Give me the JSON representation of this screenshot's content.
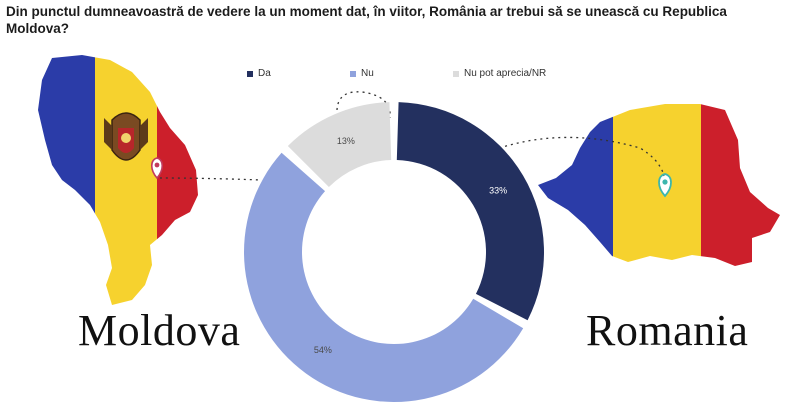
{
  "question": "Din punctul dumneavoastră de vedere la un moment dat, în viitor,  România ar trebui să se unească cu Republica Moldova?",
  "labels": {
    "left_country": "Moldova",
    "right_country": "Romania"
  },
  "colors": {
    "da": "#23305f",
    "nu": "#8fa2dd",
    "nr": "#dcdcdc",
    "flag_blue": "#2b3ca8",
    "flag_yellow": "#f6d22e",
    "flag_red": "#cc1f2b",
    "pin": "#3cb6ad"
  },
  "chart_data": {
    "type": "pie",
    "donut": true,
    "legend_position": "top",
    "categories": [
      "Da",
      "Nu",
      "Nu pot aprecia/NR"
    ],
    "values": [
      33,
      54,
      13
    ],
    "data_labels": [
      "33%",
      "54%",
      "13%"
    ]
  }
}
